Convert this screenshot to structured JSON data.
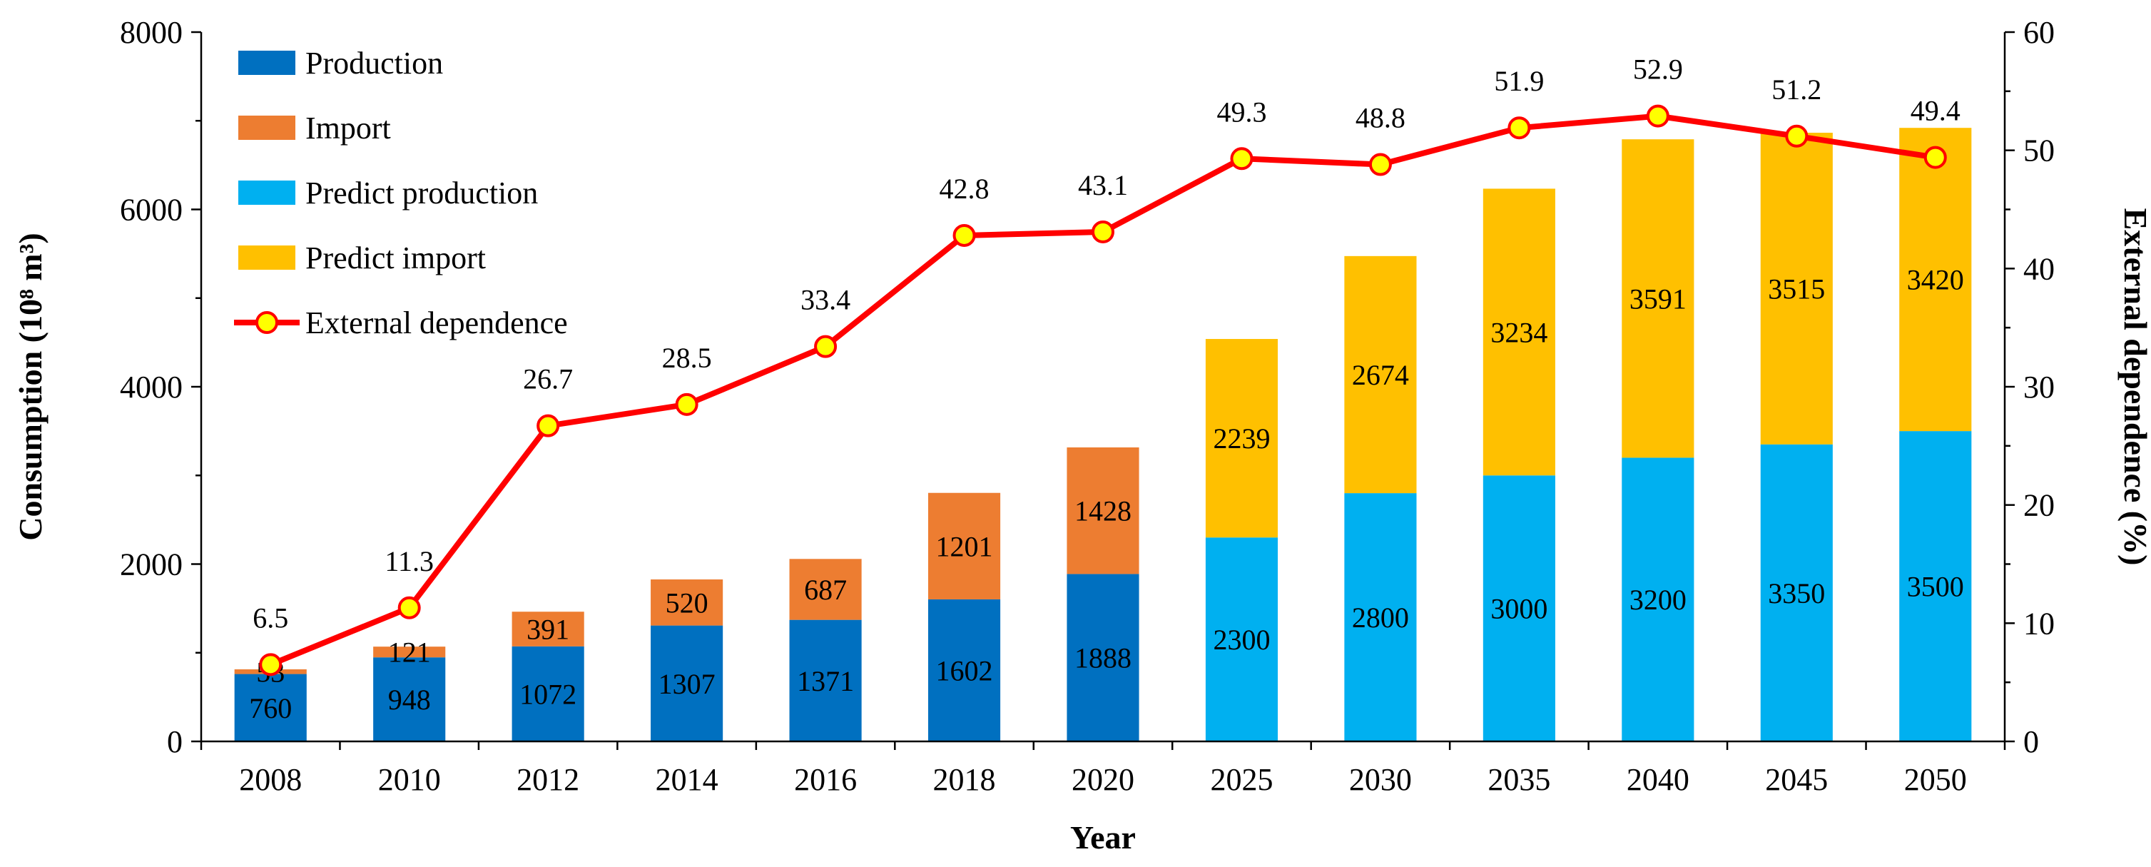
{
  "chart_data": {
    "type": "bar",
    "stacked": true,
    "categories": [
      "2008",
      "2010",
      "2012",
      "2014",
      "2016",
      "2018",
      "2020",
      "2025",
      "2030",
      "2035",
      "2040",
      "2045",
      "2050"
    ],
    "series": [
      {
        "name": "Production",
        "color": "#0070C0",
        "values": [
          760,
          948,
          1072,
          1307,
          1371,
          1602,
          1888,
          null,
          null,
          null,
          null,
          null,
          null
        ]
      },
      {
        "name": "Import",
        "color": "#ED7D31",
        "values": [
          53,
          121,
          391,
          520,
          687,
          1201,
          1428,
          null,
          null,
          null,
          null,
          null,
          null
        ]
      },
      {
        "name": "Predict production",
        "color": "#00B0F0",
        "values": [
          null,
          null,
          null,
          null,
          null,
          null,
          null,
          2300,
          2800,
          3000,
          3200,
          3350,
          3500
        ]
      },
      {
        "name": "Predict import",
        "color": "#FFC000",
        "values": [
          null,
          null,
          null,
          null,
          null,
          null,
          null,
          2239,
          2674,
          3234,
          3591,
          3515,
          3420
        ]
      }
    ],
    "line_series": {
      "name": "External dependence",
      "color": "#FF0000",
      "marker_fill": "#FFFF00",
      "axis": "right",
      "values": [
        6.5,
        11.3,
        26.7,
        28.5,
        33.4,
        42.8,
        43.1,
        49.3,
        48.8,
        51.9,
        52.9,
        51.2,
        49.4
      ]
    },
    "xlabel": "Year",
    "ylabel": "Consumption (10⁸ m³)",
    "y2label": "External dependence (%)",
    "ylim": [
      0,
      8000
    ],
    "y_ticks": [
      "0",
      "2000",
      "4000",
      "6000",
      "8000"
    ],
    "y2lim": [
      0,
      60
    ],
    "y2_ticks": [
      "0",
      "10",
      "20",
      "30",
      "40",
      "50",
      "60"
    ],
    "legend_position": "top-left",
    "grid": false
  }
}
